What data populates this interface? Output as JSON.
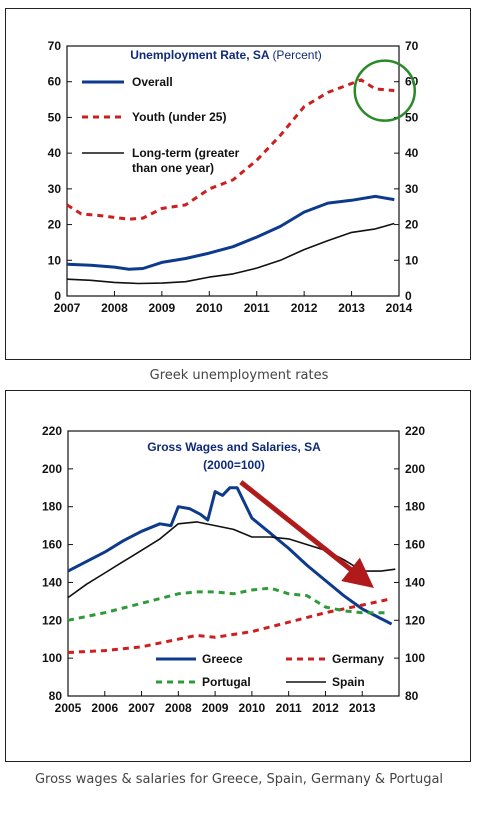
{
  "captions": {
    "chart1": "Greek unemployment rates",
    "chart2": "Gross wages & salaries for Greece, Spain, Germany & Portugal"
  },
  "chart_data": [
    {
      "type": "line",
      "title": "Unemployment Rate, SA",
      "title_unit": "(Percent)",
      "xlabel": "",
      "ylabel": "",
      "x_ticks": [
        "2007",
        "2008",
        "2009",
        "2010",
        "2011",
        "2012",
        "2013",
        "2014"
      ],
      "ylim": [
        0,
        70
      ],
      "y_ticks": [
        0,
        10,
        20,
        30,
        40,
        50,
        60,
        70
      ],
      "grid": false,
      "legend_position": "top-left",
      "annotations": [
        "circle around youth rate in late 2013 (green)"
      ],
      "series": [
        {
          "name": "Overall",
          "color": "#0d3a8c",
          "style": "solid",
          "x": [
            2007.0,
            2007.5,
            2008.0,
            2008.3,
            2008.6,
            2009.0,
            2009.5,
            2010.0,
            2010.5,
            2011.0,
            2011.5,
            2012.0,
            2012.5,
            2013.0,
            2013.5,
            2013.9
          ],
          "y": [
            8.9,
            8.6,
            8.1,
            7.5,
            7.7,
            9.4,
            10.5,
            12.0,
            13.8,
            16.5,
            19.5,
            23.5,
            26.0,
            26.8,
            27.9,
            27.0
          ]
        },
        {
          "name": "Youth (under 25)",
          "color": "#cc1f1f",
          "style": "dashed",
          "x": [
            2007.0,
            2007.3,
            2007.7,
            2008.0,
            2008.3,
            2008.6,
            2009.0,
            2009.5,
            2010.0,
            2010.5,
            2011.0,
            2011.5,
            2012.0,
            2012.5,
            2013.0,
            2013.2,
            2013.5,
            2013.9
          ],
          "y": [
            25.5,
            23.0,
            22.5,
            22.0,
            21.5,
            21.8,
            24.5,
            25.5,
            30.0,
            32.5,
            38.0,
            45.0,
            53.0,
            57.0,
            59.5,
            60.5,
            58.0,
            57.5
          ]
        },
        {
          "name": "Long-term (greater than one year)",
          "color": "#111111",
          "style": "solid",
          "x": [
            2007.0,
            2007.5,
            2008.0,
            2008.5,
            2009.0,
            2009.5,
            2010.0,
            2010.5,
            2011.0,
            2011.5,
            2012.0,
            2012.5,
            2013.0,
            2013.5,
            2013.9
          ],
          "y": [
            4.7,
            4.4,
            3.8,
            3.5,
            3.6,
            4.0,
            5.3,
            6.2,
            7.8,
            10.0,
            13.0,
            15.5,
            17.8,
            18.8,
            20.3
          ]
        }
      ]
    },
    {
      "type": "line",
      "title": "Gross Wages and Salaries, SA",
      "subtitle": "(2000=100)",
      "xlabel": "",
      "ylabel": "",
      "x_ticks": [
        "2005",
        "2006",
        "2007",
        "2008",
        "2009",
        "2010",
        "2011",
        "2012",
        "2013"
      ],
      "ylim": [
        80,
        220
      ],
      "y_ticks": [
        80,
        100,
        120,
        140,
        160,
        180,
        200,
        220
      ],
      "grid": false,
      "legend_position": "bottom-right",
      "annotations": [
        "red arrow pointing down from the Greece peak (2009-10) to 2013"
      ],
      "series": [
        {
          "name": "Greece",
          "color": "#0d3a8c",
          "style": "solid",
          "x": [
            2005.0,
            2005.5,
            2006.0,
            2006.5,
            2007.0,
            2007.5,
            2007.8,
            2008.0,
            2008.3,
            2008.6,
            2008.8,
            2009.0,
            2009.2,
            2009.4,
            2009.6,
            2009.8,
            2010.0,
            2010.5,
            2011.0,
            2011.5,
            2012.0,
            2012.5,
            2013.0,
            2013.4,
            2013.8
          ],
          "y": [
            146,
            151,
            156,
            162,
            167,
            171,
            170,
            180,
            179,
            176,
            173,
            188,
            186,
            190,
            190,
            182,
            174,
            166,
            158,
            149,
            141,
            133,
            126,
            122,
            118
          ]
        },
        {
          "name": "Germany",
          "color": "#cc1f1f",
          "style": "dashed",
          "x": [
            2005.0,
            2006.0,
            2007.0,
            2008.0,
            2008.5,
            2009.0,
            2010.0,
            2011.0,
            2012.0,
            2013.0,
            2013.7
          ],
          "y": [
            103,
            104,
            106,
            110,
            112,
            111,
            114,
            119,
            124,
            128,
            131
          ]
        },
        {
          "name": "Portugal",
          "color": "#2f9a3a",
          "style": "dashed",
          "x": [
            2005.0,
            2006.0,
            2007.0,
            2008.0,
            2008.5,
            2009.0,
            2009.5,
            2010.0,
            2010.5,
            2011.0,
            2011.5,
            2012.0,
            2012.5,
            2013.0,
            2013.7
          ],
          "y": [
            120,
            124,
            129,
            134,
            135,
            135,
            134,
            136,
            137,
            134,
            133,
            127,
            125,
            124,
            124
          ]
        },
        {
          "name": "Spain",
          "color": "#111111",
          "style": "solid",
          "x": [
            2005.0,
            2005.5,
            2006.0,
            2006.5,
            2007.0,
            2007.5,
            2008.0,
            2008.5,
            2009.0,
            2009.5,
            2010.0,
            2010.5,
            2011.0,
            2011.5,
            2012.0,
            2012.5,
            2013.0,
            2013.5,
            2013.9
          ],
          "y": [
            132,
            139,
            145,
            151,
            157,
            163,
            171,
            172,
            170,
            168,
            164,
            164,
            163,
            160,
            157,
            152,
            146,
            146,
            147
          ]
        }
      ]
    }
  ]
}
